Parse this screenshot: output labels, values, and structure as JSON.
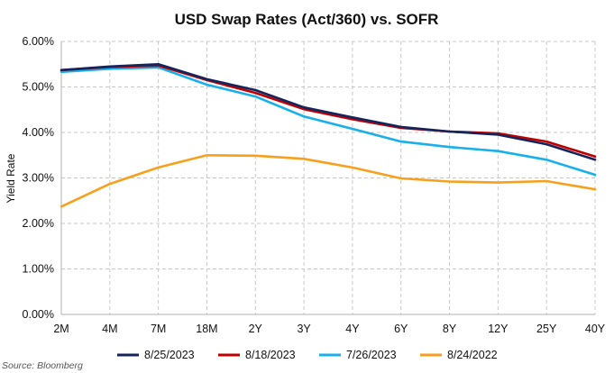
{
  "chart_data": {
    "type": "line",
    "title": "USD Swap Rates (Act/360) vs. SOFR",
    "xlabel": "",
    "ylabel": "Yield Rate",
    "categories": [
      "2M",
      "4M",
      "7M",
      "18M",
      "2Y",
      "3Y",
      "4Y",
      "6Y",
      "8Y",
      "12Y",
      "25Y",
      "40Y"
    ],
    "ylim": [
      0,
      6
    ],
    "yticks": [
      "0.00%",
      "1.00%",
      "2.00%",
      "3.00%",
      "4.00%",
      "5.00%",
      "6.00%"
    ],
    "grid": true,
    "legend_position": "bottom",
    "series": [
      {
        "name": "8/25/2023",
        "color": "#14245c",
        "values": [
          5.37,
          5.45,
          5.5,
          5.17,
          4.93,
          4.55,
          4.33,
          4.12,
          4.02,
          3.95,
          3.74,
          3.4
        ]
      },
      {
        "name": "8/18/2023",
        "color": "#c00000",
        "values": [
          5.37,
          5.44,
          5.47,
          5.15,
          4.87,
          4.51,
          4.29,
          4.1,
          4.02,
          3.98,
          3.8,
          3.47
        ]
      },
      {
        "name": "7/26/2023",
        "color": "#17b0ea",
        "values": [
          5.33,
          5.4,
          5.43,
          5.05,
          4.79,
          4.35,
          4.08,
          3.8,
          3.68,
          3.59,
          3.4,
          3.07
        ]
      },
      {
        "name": "8/24/2022",
        "color": "#f7a01c",
        "values": [
          2.37,
          2.87,
          3.23,
          3.5,
          3.49,
          3.42,
          3.23,
          2.99,
          2.92,
          2.9,
          2.93,
          2.75
        ]
      }
    ],
    "source": "Source: Bloomberg"
  }
}
